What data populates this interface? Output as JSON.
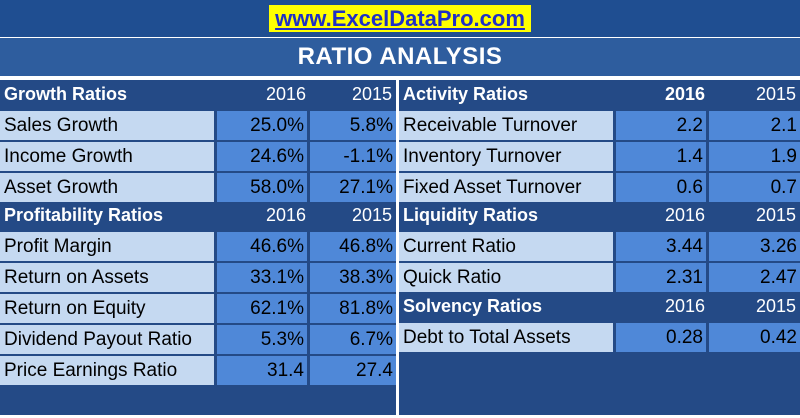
{
  "site": "www.ExcelDataPro.com",
  "title": "RATIO ANALYSIS",
  "colors": {
    "banner": "#1f4e91",
    "highlight": "#ffff00",
    "label_cell": "#c5d9f1",
    "value_cell": "#4f88d8",
    "panel": "#244a86"
  },
  "growth": {
    "header": "Growth Ratios",
    "y1": "2016",
    "y2": "2015",
    "rows": [
      {
        "label": "Sales Growth",
        "v1": "25.0%",
        "v2": "5.8%"
      },
      {
        "label": "Income Growth",
        "v1": "24.6%",
        "v2": "-1.1%"
      },
      {
        "label": "Asset Growth",
        "v1": "58.0%",
        "v2": "27.1%"
      }
    ]
  },
  "profitability": {
    "header": "Profitability Ratios",
    "y1": "2016",
    "y2": "2015",
    "rows": [
      {
        "label": "Profit Margin",
        "v1": "46.6%",
        "v2": "46.8%"
      },
      {
        "label": "Return on Assets",
        "v1": "33.1%",
        "v2": "38.3%"
      },
      {
        "label": "Return on Equity",
        "v1": "62.1%",
        "v2": "81.8%"
      },
      {
        "label": "Dividend Payout Ratio",
        "v1": "5.3%",
        "v2": "6.7%"
      },
      {
        "label": "Price Earnings Ratio",
        "v1": "31.4",
        "v2": "27.4"
      }
    ]
  },
  "activity": {
    "header": "Activity Ratios",
    "y1": "2016",
    "y2": "2015",
    "rows": [
      {
        "label": "Receivable Turnover",
        "v1": "2.2",
        "v2": "2.1"
      },
      {
        "label": "Inventory Turnover",
        "v1": "1.4",
        "v2": "1.9"
      },
      {
        "label": "Fixed Asset Turnover",
        "v1": "0.6",
        "v2": "0.7"
      }
    ]
  },
  "liquidity": {
    "header": "Liquidity Ratios",
    "y1": "2016",
    "y2": "2015",
    "rows": [
      {
        "label": "Current Ratio",
        "v1": "3.44",
        "v2": "3.26"
      },
      {
        "label": "Quick Ratio",
        "v1": "2.31",
        "v2": "2.47"
      }
    ]
  },
  "solvency": {
    "header": "Solvency Ratios",
    "y1": "2016",
    "y2": "2015",
    "rows": [
      {
        "label": "Debt to Total Assets",
        "v1": "0.28",
        "v2": "0.42"
      }
    ]
  }
}
